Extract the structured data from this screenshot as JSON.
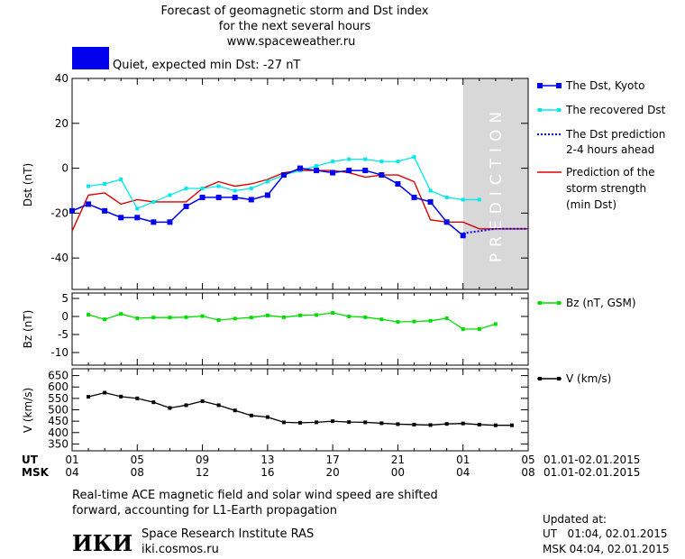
{
  "header": {
    "title_line1": "Forecast of geomagnetic storm and Dst index",
    "title_line2": "for the next several hours",
    "title_line3": "www.spaceweather.ru",
    "status_text": "Quiet, expected min Dst: -27 nT",
    "status_color": "#0000ee"
  },
  "prediction_text": "PREDICTION",
  "legend": {
    "dst_kyoto": "The Dst, Kyoto",
    "dst_recovered": "The recovered Dst",
    "dst_prediction_1": "The Dst prediction",
    "dst_prediction_2": "2-4 hours ahead",
    "storm_strength_1": "Prediction of the",
    "storm_strength_2": "storm strength",
    "storm_strength_3": "(min Dst)",
    "bz": "Bz (nT, GSM)",
    "v": "V (km/s)"
  },
  "time_axis": {
    "ut_label": "UT",
    "msk_label": "MSK",
    "ut_ticks": [
      "01",
      "05",
      "09",
      "13",
      "17",
      "21",
      "01",
      "05"
    ],
    "msk_ticks": [
      "04",
      "08",
      "12",
      "16",
      "20",
      "00",
      "04",
      "08"
    ],
    "ut_range": "01.01-02.01.2015",
    "msk_range": "01.01-02.01.2015"
  },
  "footer": {
    "note_line1": "Real-time ACE magnetic field and solar wind speed are shifted",
    "note_line2": "forward, accounting for L1-Earth propagation",
    "logo_text": "ИКИ",
    "institute": "Space Research Institute RAS",
    "site": "iki.cosmos.ru",
    "updated_label": "Updated at:",
    "updated_ut": "UT   01:04, 02.01.2015",
    "updated_msk": "MSK 04:04, 02.01.2015"
  },
  "colors": {
    "dst_kyoto": "#0000ee",
    "dst_recovered": "#00e8e8",
    "dst_prediction": "#0000ee",
    "storm_strength": "#dd0000",
    "bz": "#00dd00",
    "v": "#000000",
    "prediction_zone": "#d8d8d8"
  },
  "chart_data": [
    {
      "type": "line",
      "name": "dst",
      "ylabel": "Dst (nT)",
      "ylim": [
        -54,
        40
      ],
      "yticks": [
        40,
        20,
        0,
        -20,
        -40
      ],
      "xlim": [
        0,
        28
      ],
      "prediction_zone": [
        24,
        28
      ],
      "series": [
        {
          "name": "The Dst, Kyoto",
          "x": [
            0,
            1,
            2,
            3,
            4,
            5,
            6,
            7,
            8,
            9,
            10,
            11,
            12,
            13,
            14,
            15,
            16,
            17,
            18,
            19,
            20,
            21,
            22,
            23,
            24
          ],
          "values": [
            -19,
            -16,
            -19,
            -22,
            -22,
            -24,
            -24,
            -17,
            -13,
            -13,
            -13,
            -14,
            -12,
            -3,
            0,
            -1,
            -2,
            -1,
            -1,
            -3,
            -7,
            -13,
            -15,
            -24,
            -30
          ]
        },
        {
          "name": "The recovered Dst",
          "x": [
            1,
            2,
            3,
            4,
            5,
            6,
            7,
            8,
            9,
            10,
            11,
            12,
            13,
            14,
            15,
            16,
            17,
            18,
            19,
            20,
            21,
            22,
            23,
            24,
            25
          ],
          "values": [
            -8,
            -7,
            -5,
            -18,
            -15,
            -12,
            -9,
            -9,
            -8,
            -10,
            -9,
            -6,
            -3,
            -1,
            1,
            3,
            4,
            4,
            3,
            3,
            5,
            -10,
            -13,
            -14,
            -14
          ]
        },
        {
          "name": "The Dst prediction 2-4 hours ahead",
          "x": [
            24,
            25,
            26,
            27,
            28
          ],
          "values": [
            -29,
            -28,
            -27,
            -27,
            -27
          ]
        },
        {
          "name": "Prediction of the storm strength (min Dst)",
          "x": [
            0,
            1,
            2,
            3,
            4,
            5,
            6,
            7,
            8,
            9,
            10,
            11,
            12,
            13,
            14,
            15,
            16,
            17,
            18,
            19,
            20,
            21,
            22,
            23,
            24,
            25,
            26,
            27,
            28
          ],
          "values": [
            -28,
            -12,
            -11,
            -16,
            -14,
            -15,
            -15,
            -15,
            -9,
            -6,
            -8,
            -7,
            -5,
            -2,
            -1,
            -1,
            -1,
            -2,
            -4,
            -3,
            -3,
            -6,
            -23,
            -24,
            -24,
            -27,
            -27,
            -27,
            -27
          ]
        }
      ]
    },
    {
      "type": "line",
      "name": "bz",
      "ylabel": "Bz (nT)",
      "ylim": [
        -13.5,
        6.5
      ],
      "yticks": [
        5,
        0,
        -5,
        -10
      ],
      "xlim": [
        0,
        28
      ],
      "series": [
        {
          "name": "Bz (nT, GSM)",
          "x": [
            1,
            2,
            3,
            4,
            5,
            6,
            7,
            8,
            9,
            10,
            11,
            12,
            13,
            14,
            15,
            16,
            17,
            18,
            19,
            20,
            21,
            22,
            23,
            24,
            25,
            26
          ],
          "values": [
            0.5,
            -0.8,
            0.7,
            -0.5,
            -0.3,
            -0.3,
            -0.2,
            0.1,
            -1,
            -0.6,
            -0.3,
            0.3,
            -0.2,
            0.3,
            0.4,
            1,
            0,
            -0.2,
            -0.8,
            -1.5,
            -1.4,
            -1.2,
            -0.5,
            -3.5,
            -3.5,
            -2.1
          ]
        }
      ]
    },
    {
      "type": "line",
      "name": "v",
      "ylabel": "V (km/s)",
      "ylim": [
        320,
        680
      ],
      "yticks": [
        650,
        600,
        550,
        500,
        450,
        400,
        350
      ],
      "xlim": [
        0,
        28
      ],
      "series": [
        {
          "name": "V (km/s)",
          "x": [
            1,
            2,
            3,
            4,
            5,
            6,
            7,
            8,
            9,
            10,
            11,
            12,
            13,
            14,
            15,
            16,
            17,
            18,
            19,
            20,
            21,
            22,
            23,
            24,
            25,
            26,
            27
          ],
          "values": [
            557,
            575,
            558,
            550,
            533,
            508,
            520,
            538,
            520,
            497,
            475,
            468,
            445,
            443,
            445,
            450,
            446,
            445,
            441,
            437,
            435,
            433,
            438,
            440,
            435,
            432,
            432
          ]
        }
      ]
    }
  ]
}
